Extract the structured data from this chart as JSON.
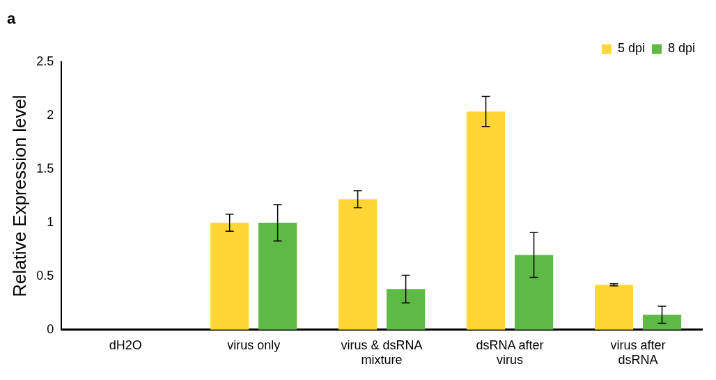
{
  "chart_data": {
    "type": "bar",
    "title": "a",
    "ylabel": "Relative Expression level",
    "categories": [
      "dH2O",
      "virus only",
      "virus & dsRNA mixture",
      "dsRNA after virus",
      "virus after dsRNA"
    ],
    "series": [
      {
        "name": "5 dpi",
        "color": "#ffd633",
        "values": [
          0,
          1.0,
          1.22,
          2.04,
          0.42
        ],
        "errors": [
          null,
          0.08,
          0.08,
          0.14,
          0.01
        ]
      },
      {
        "name": "8 dpi",
        "color": "#5fb946",
        "values": [
          0,
          1.0,
          0.38,
          0.7,
          0.14
        ],
        "errors": [
          null,
          0.17,
          0.13,
          0.21,
          0.08
        ]
      }
    ],
    "ylim": [
      0,
      2.5
    ],
    "yticks": [
      0,
      0.5,
      1,
      1.5,
      2,
      2.5
    ],
    "grid": false,
    "legend": "top right"
  }
}
